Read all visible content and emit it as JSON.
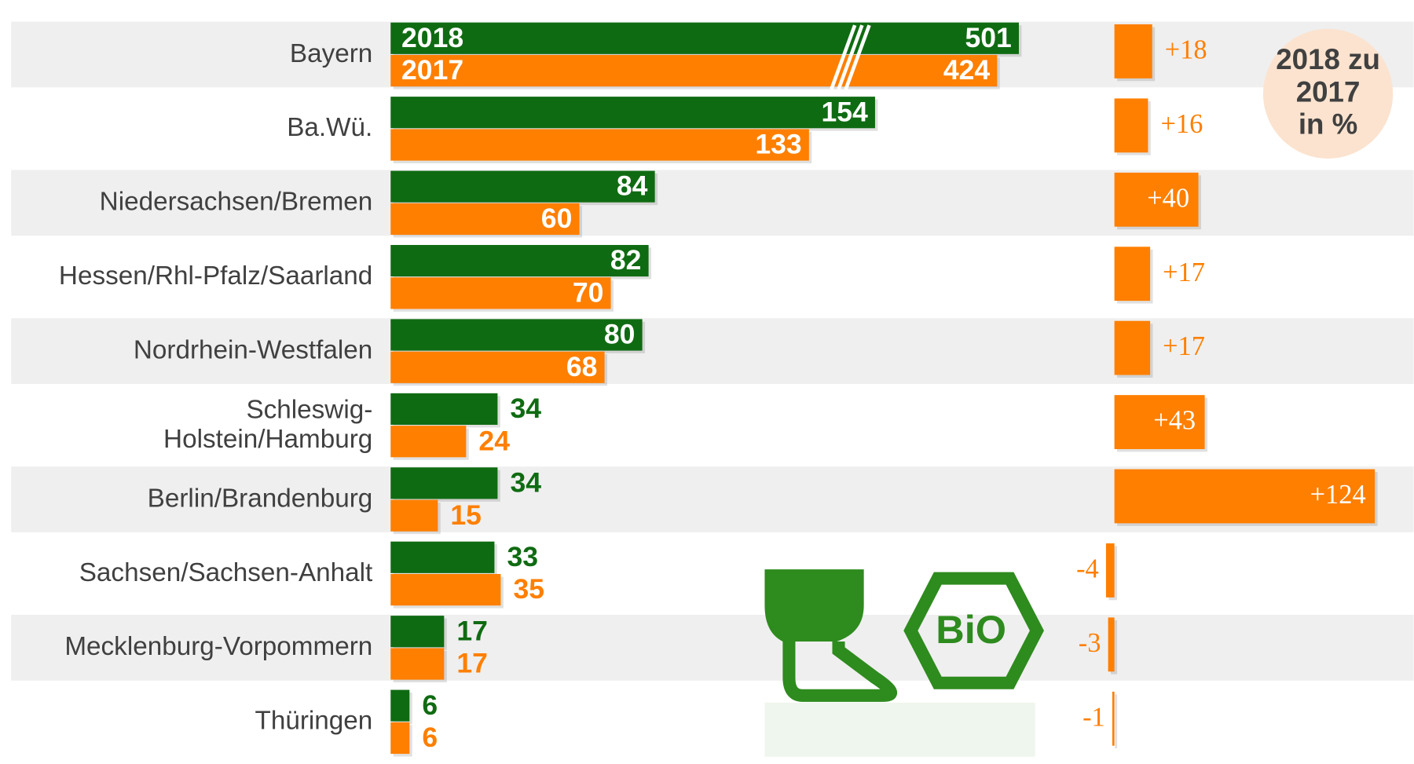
{
  "chart_data": {
    "type": "bar",
    "categories": [
      "Bayern",
      "Ba.Wü.",
      "Niedersachsen/Bremen",
      "Hessen/Rhl-Pfalz/Saarland",
      "Nordrhein-Westfalen",
      "Schleswig-\nHolstein/Hamburg",
      "Berlin/Brandenburg",
      "Sachsen/Sachsen-Anhalt",
      "Mecklenburg-Vorpommern",
      "Thüringen"
    ],
    "series": [
      {
        "name": "2018",
        "color": "#0f6b12",
        "values": [
          501,
          154,
          84,
          82,
          80,
          34,
          34,
          33,
          17,
          6
        ]
      },
      {
        "name": "2017",
        "color": "#ff7f00",
        "values": [
          424,
          133,
          60,
          70,
          68,
          24,
          15,
          35,
          17,
          6
        ]
      }
    ],
    "change": {
      "title": "2018 zu\n2017\nin %",
      "color": "#ff7f00",
      "values": [
        18,
        16,
        40,
        17,
        17,
        43,
        124,
        -4,
        -3,
        -1
      ],
      "value_labels": [
        "+18",
        "+16",
        "+40",
        "+17",
        "+17",
        "+43",
        "+124",
        "-4",
        "-3",
        "-1"
      ]
    }
  }
}
